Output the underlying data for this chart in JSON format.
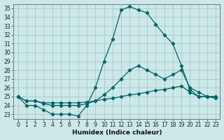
{
  "xlabel": "Humidex (Indice chaleur)",
  "bg_color": "#cce8e8",
  "grid_color": "#aacccc",
  "line_color": "#006666",
  "xlim": [
    -0.5,
    23.5
  ],
  "ylim": [
    22.5,
    35.5
  ],
  "yticks": [
    23,
    24,
    25,
    26,
    27,
    28,
    29,
    30,
    31,
    32,
    33,
    34,
    35
  ],
  "xticks": [
    0,
    1,
    2,
    3,
    4,
    5,
    6,
    7,
    8,
    9,
    10,
    11,
    12,
    13,
    14,
    15,
    16,
    17,
    18,
    19,
    20,
    21,
    22,
    23
  ],
  "line1": {
    "x": [
      0,
      1,
      2,
      3,
      4,
      5,
      6,
      7,
      8,
      9,
      10,
      11,
      12,
      13,
      14,
      15,
      16,
      17,
      18,
      19,
      20,
      21,
      22,
      23
    ],
    "y": [
      25,
      24,
      24,
      23.5,
      23,
      23,
      23,
      22.8,
      24,
      26,
      29,
      31.5,
      34.8,
      35.2,
      34.8,
      34.5,
      33.2,
      32,
      31,
      28.5,
      25.8,
      25,
      25,
      25
    ]
  },
  "line2": {
    "x": [
      0,
      1,
      2,
      3,
      4,
      5,
      6,
      7,
      8,
      9,
      10,
      11,
      12,
      13,
      14,
      15,
      16,
      17,
      18,
      19,
      20,
      21,
      22,
      23
    ],
    "y": [
      25,
      24.5,
      24.5,
      24.2,
      24.0,
      24.0,
      24.0,
      24.0,
      24.2,
      24.5,
      25.2,
      26.0,
      27.0,
      28.0,
      28.5,
      28.0,
      27.5,
      27.0,
      27.5,
      28.0,
      26.0,
      25.5,
      25,
      25
    ]
  },
  "line3": {
    "x": [
      0,
      1,
      2,
      3,
      4,
      5,
      6,
      7,
      8,
      9,
      10,
      11,
      12,
      13,
      14,
      15,
      16,
      17,
      18,
      19,
      20,
      21,
      22,
      23
    ],
    "y": [
      25,
      24.5,
      24.5,
      24.3,
      24.3,
      24.3,
      24.3,
      24.3,
      24.4,
      24.5,
      24.7,
      24.8,
      25.0,
      25.2,
      25.3,
      25.5,
      25.7,
      25.8,
      26.0,
      26.2,
      25.5,
      25.0,
      25,
      24.8
    ]
  }
}
